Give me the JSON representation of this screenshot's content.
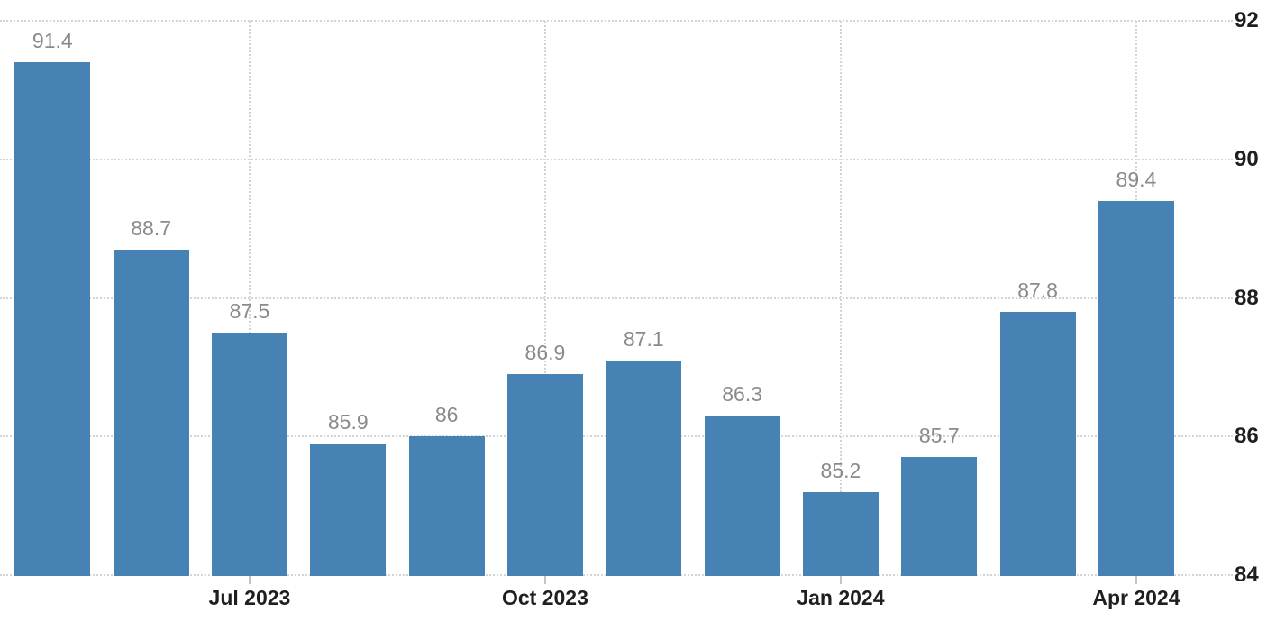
{
  "chart_data": {
    "type": "bar",
    "title": "",
    "xlabel": "",
    "ylabel": "",
    "values": [
      91.4,
      88.7,
      87.5,
      85.9,
      86,
      86.9,
      87.1,
      86.3,
      85.2,
      85.7,
      87.8,
      89.4
    ],
    "bar_value_labels": [
      "91.4",
      "88.7",
      "87.5",
      "85.9",
      "86",
      "86.9",
      "87.1",
      "86.3",
      "85.2",
      "85.7",
      "87.8",
      "89.4"
    ],
    "xticks": [
      {
        "bar_index": 2,
        "label": "Jul 2023"
      },
      {
        "bar_index": 5,
        "label": "Oct 2023"
      },
      {
        "bar_index": 8,
        "label": "Jan 2024"
      },
      {
        "bar_index": 11,
        "label": "Apr 2024"
      }
    ],
    "yticks": [
      84,
      86,
      88,
      90,
      92
    ],
    "ytick_labels": [
      "84",
      "86",
      "88",
      "90",
      "92"
    ],
    "ylim": [
      84,
      92
    ],
    "y_axis_side": "right",
    "grid": "dotted",
    "legend": "none",
    "colors": {
      "bar": "#4682b4",
      "value_label": "#8a8a8a",
      "axis_label": "#1f1f1f",
      "gridline": "#d4d4d4",
      "tick_mark": "#c4c4c4",
      "background": "#ffffff"
    }
  }
}
